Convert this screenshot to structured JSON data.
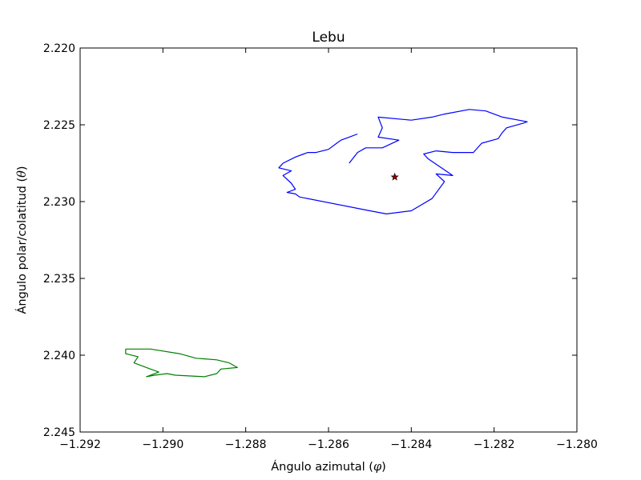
{
  "chart_data": {
    "type": "line",
    "title": "Lebu",
    "xlabel_main": "Ángulo azimutal (",
    "xlabel_symbol": "φ",
    "xlabel_end": ")",
    "ylabel_main": "Ángulo polar/colatitud (",
    "ylabel_symbol": "θ",
    "ylabel_end": ")",
    "xlim": [
      -1.292,
      -1.28
    ],
    "ylim": [
      2.245,
      2.22
    ],
    "y_inverted": true,
    "grid": false,
    "xticks": [
      -1.292,
      -1.29,
      -1.288,
      -1.286,
      -1.284,
      -1.282,
      -1.28
    ],
    "xtick_labels": [
      "−1.292",
      "−1.290",
      "−1.288",
      "−1.286",
      "−1.284",
      "−1.282",
      "−1.280"
    ],
    "yticks": [
      2.22,
      2.225,
      2.23,
      2.235,
      2.24,
      2.245
    ],
    "ytick_labels": [
      "2.220",
      "2.225",
      "2.230",
      "2.235",
      "2.240",
      "2.245"
    ],
    "series": [
      {
        "kind": "line",
        "color": "#0000ff",
        "points": [
          [
            -1.2855,
            2.2275
          ],
          [
            -1.2853,
            2.2268
          ],
          [
            -1.2851,
            2.2265
          ],
          [
            -1.2847,
            2.2265
          ],
          [
            -1.2843,
            2.226
          ],
          [
            -1.2848,
            2.2258
          ],
          [
            -1.2847,
            2.2252
          ],
          [
            -1.2848,
            2.2245
          ],
          [
            -1.284,
            2.2247
          ],
          [
            -1.2835,
            2.2245
          ],
          [
            -1.2832,
            2.2243
          ],
          [
            -1.2826,
            2.224
          ],
          [
            -1.2822,
            2.2241
          ],
          [
            -1.2818,
            2.2245
          ],
          [
            -1.2812,
            2.2248
          ],
          [
            -1.2813,
            2.2249
          ],
          [
            -1.2817,
            2.2252
          ],
          [
            -1.2818,
            2.2255
          ],
          [
            -1.2819,
            2.2259
          ],
          [
            -1.2823,
            2.2262
          ],
          [
            -1.2825,
            2.2268
          ],
          [
            -1.283,
            2.2268
          ],
          [
            -1.2834,
            2.2267
          ],
          [
            -1.2837,
            2.2269
          ],
          [
            -1.2836,
            2.2272
          ],
          [
            -1.283,
            2.2283
          ],
          [
            -1.2834,
            2.2282
          ],
          [
            -1.2832,
            2.2287
          ],
          [
            -1.2835,
            2.2298
          ],
          [
            -1.284,
            2.2306
          ],
          [
            -1.2846,
            2.2308
          ],
          [
            -1.285,
            2.2306
          ],
          [
            -1.2867,
            2.2297
          ],
          [
            -1.2868,
            2.2295
          ],
          [
            -1.287,
            2.2294
          ],
          [
            -1.2868,
            2.2292
          ],
          [
            -1.2869,
            2.2288
          ],
          [
            -1.2871,
            2.2283
          ],
          [
            -1.2869,
            2.228
          ],
          [
            -1.2872,
            2.2278
          ],
          [
            -1.2871,
            2.2275
          ],
          [
            -1.2868,
            2.2271
          ],
          [
            -1.2866,
            2.2269
          ],
          [
            -1.2865,
            2.2268
          ],
          [
            -1.2863,
            2.2268
          ],
          [
            -1.286,
            2.2266
          ],
          [
            -1.2858,
            2.2262
          ],
          [
            -1.2857,
            2.226
          ],
          [
            -1.2855,
            2.2258
          ],
          [
            -1.2853,
            2.2256
          ]
        ]
      },
      {
        "kind": "line",
        "color": "#007f00",
        "points": [
          [
            -1.2909,
            2.2396
          ],
          [
            -1.2903,
            2.2396
          ],
          [
            -1.2896,
            2.2399
          ],
          [
            -1.2892,
            2.2402
          ],
          [
            -1.2887,
            2.2403
          ],
          [
            -1.2884,
            2.2405
          ],
          [
            -1.2882,
            2.2408
          ],
          [
            -1.2886,
            2.2409
          ],
          [
            -1.2887,
            2.2412
          ],
          [
            -1.289,
            2.2414
          ],
          [
            -1.2897,
            2.2413
          ],
          [
            -1.2899,
            2.2412
          ],
          [
            -1.2902,
            2.2413
          ],
          [
            -1.2904,
            2.2414
          ],
          [
            -1.2901,
            2.2411
          ],
          [
            -1.2903,
            2.2409
          ],
          [
            -1.2905,
            2.2407
          ],
          [
            -1.2907,
            2.2405
          ],
          [
            -1.2906,
            2.2401
          ],
          [
            -1.2909,
            2.2399
          ],
          [
            -1.2909,
            2.2396
          ]
        ]
      },
      {
        "kind": "marker",
        "marker": "star",
        "color": "#8b0000",
        "points": [
          [
            -1.2844,
            2.2284
          ]
        ]
      }
    ]
  }
}
